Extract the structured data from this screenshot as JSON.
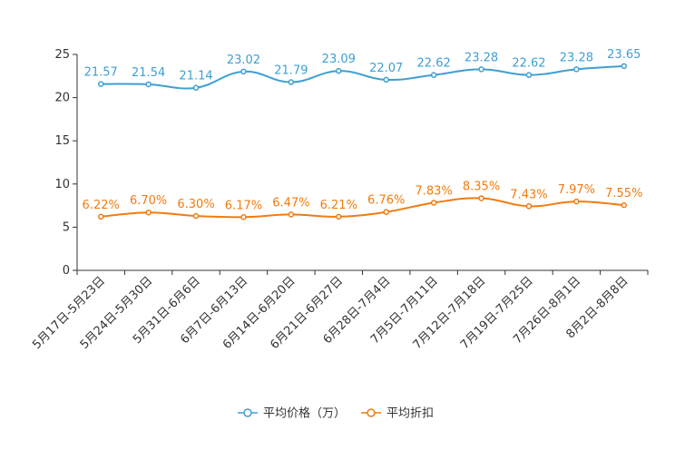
{
  "chart_data": {
    "type": "line",
    "categories": [
      "5月17日-5月23日",
      "5月24日-5月30日",
      "5月31日-6月6日",
      "6月7日-6月13日",
      "6月14日-6月20日",
      "6月21日-6月27日",
      "6月28日-7月4日",
      "7月5日-7月11日",
      "7月12日-7月18日",
      "7月19日-7月25日",
      "7月26日-8月1日",
      "8月2日-8月8日"
    ],
    "series": [
      {
        "name": "平均价格（万）",
        "color": "#3e9fd3",
        "values": [
          21.57,
          21.54,
          21.14,
          23.02,
          21.79,
          23.09,
          22.07,
          22.62,
          23.28,
          22.62,
          23.28,
          23.65
        ],
        "labels": [
          "21.57",
          "21.54",
          "21.14",
          "23.02",
          "21.79",
          "23.09",
          "22.07",
          "22.62",
          "23.28",
          "22.62",
          "23.28",
          "23.65"
        ]
      },
      {
        "name": "平均折扣",
        "color": "#f27b0e",
        "values": [
          6.22,
          6.7,
          6.3,
          6.17,
          6.47,
          6.21,
          6.76,
          7.83,
          8.35,
          7.43,
          7.97,
          7.55
        ],
        "labels": [
          "6.22%",
          "6.70%",
          "6.30%",
          "6.17%",
          "6.47%",
          "6.21%",
          "6.76%",
          "7.83%",
          "8.35%",
          "7.43%",
          "7.97%",
          "7.55%"
        ]
      }
    ],
    "y_ticks": [
      "0",
      "5",
      "10",
      "15",
      "20",
      "25"
    ],
    "ylim": [
      0,
      25
    ],
    "title": "",
    "xlabel": "",
    "ylabel": "",
    "legend_position": "bottom-center",
    "grid": false
  }
}
